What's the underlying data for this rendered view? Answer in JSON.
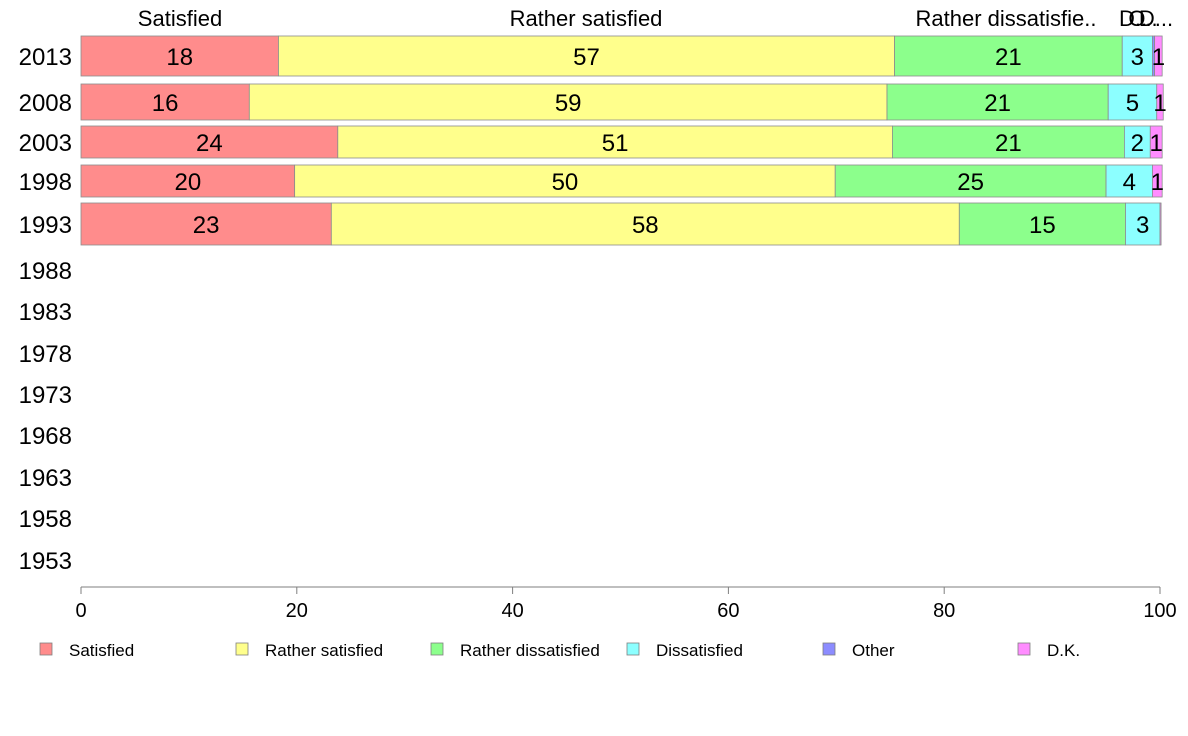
{
  "chart_data": {
    "type": "bar",
    "orientation": "horizontal",
    "stacked": true,
    "categories": [
      "2013",
      "2008",
      "2003",
      "1998",
      "1993",
      "1988",
      "1983",
      "1978",
      "1973",
      "1968",
      "1963",
      "1958",
      "1953"
    ],
    "xlim": [
      0,
      100
    ],
    "xticks": [
      "0",
      "20",
      "40",
      "60",
      "80",
      "100"
    ],
    "grid": false,
    "legend_position": "bottom",
    "top_labels": [
      "Satisfied",
      "Rather satisfied",
      "Rather dissatisfie..",
      "D..",
      "O..",
      "D..."
    ],
    "series": [
      {
        "name": "Satisfied",
        "color": "#ff8c8c",
        "values": [
          18.3,
          15.6,
          23.8,
          19.8,
          23.2,
          null,
          null,
          null,
          null,
          null,
          null,
          null,
          null
        ],
        "labels": [
          "18",
          "16",
          "24",
          "20",
          "23"
        ]
      },
      {
        "name": "Rather satisfied",
        "color": "#ffff8c",
        "values": [
          57.1,
          59.1,
          51.4,
          50.1,
          58.2,
          null,
          null,
          null,
          null,
          null,
          null,
          null,
          null
        ],
        "labels": [
          "57",
          "59",
          "51",
          "50",
          "58"
        ]
      },
      {
        "name": "Rather dissatisfied",
        "color": "#8cff8c",
        "values": [
          21.1,
          20.5,
          21.5,
          25.1,
          15.4,
          null,
          null,
          null,
          null,
          null,
          null,
          null,
          null
        ],
        "labels": [
          "21",
          "21",
          "21",
          "25",
          "15"
        ]
      },
      {
        "name": "Dissatisfied",
        "color": "#8cffff",
        "values": [
          2.8,
          4.5,
          2.4,
          4.3,
          3.2,
          null,
          null,
          null,
          null,
          null,
          null,
          null,
          null
        ],
        "labels": [
          "3",
          "5",
          "2",
          "4",
          "3"
        ]
      },
      {
        "name": "Other",
        "color": "#8c8cff",
        "values": [
          0.2,
          0.0,
          0.0,
          0.0,
          0.0,
          null,
          null,
          null,
          null,
          null,
          null,
          null,
          null
        ],
        "labels": [
          "",
          "",
          "",
          "",
          ""
        ]
      },
      {
        "name": "D.K.",
        "color": "#ff8cff",
        "values": [
          0.7,
          0.6,
          1.1,
          0.9,
          0.1,
          null,
          null,
          null,
          null,
          null,
          null,
          null,
          null
        ],
        "labels": [
          "1",
          "1",
          "1",
          "1",
          ""
        ]
      }
    ]
  }
}
